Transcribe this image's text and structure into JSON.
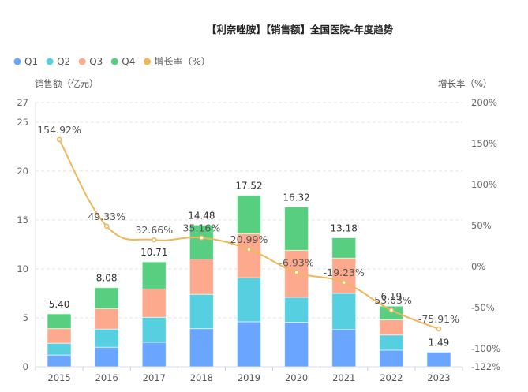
{
  "chart_data": {
    "type": "bar",
    "title": "【利奈唑胺】【销售额】全国医院-年度趋势",
    "categories": [
      "2015",
      "2016",
      "2017",
      "2018",
      "2019",
      "2020",
      "2021",
      "2022",
      "2023"
    ],
    "series": [
      {
        "name": "Q1",
        "color": "#6aa6ff",
        "values": [
          1.2,
          2.0,
          2.5,
          3.9,
          4.6,
          4.55,
          3.8,
          1.7,
          1.49
        ]
      },
      {
        "name": "Q2",
        "color": "#56cfe0",
        "values": [
          1.2,
          1.85,
          2.55,
          3.5,
          4.5,
          2.55,
          3.7,
          1.55,
          0
        ]
      },
      {
        "name": "Q3",
        "color": "#fca98e",
        "values": [
          1.5,
          2.1,
          2.9,
          3.6,
          4.5,
          4.8,
          3.6,
          1.55,
          0
        ]
      },
      {
        "name": "Q4",
        "color": "#58cf80",
        "values": [
          1.5,
          2.13,
          2.76,
          3.48,
          3.92,
          4.42,
          2.08,
          1.39,
          0
        ]
      }
    ],
    "totals": [
      "5.40",
      "8.08",
      "10.71",
      "14.48",
      "17.52",
      "16.32",
      "13.18",
      "6.19",
      "1.49"
    ],
    "growth_series": {
      "name": "增长率（%）",
      "color": "#f0b75a",
      "values": [
        154.92,
        49.33,
        32.66,
        35.16,
        20.99,
        -6.93,
        -19.23,
        -53.03,
        -75.91
      ],
      "labels": [
        "154.92%",
        "49.33%",
        "32.66%",
        "35.16%",
        "20.99%",
        "-6.93%",
        "-19.23%",
        "-53.03%",
        "-75.91%"
      ]
    },
    "legend": {
      "placement": "top-left",
      "items": [
        {
          "label": "Q1",
          "color": "#6aa6ff"
        },
        {
          "label": "Q2",
          "color": "#56cfe0"
        },
        {
          "label": "Q3",
          "color": "#fca98e"
        },
        {
          "label": "Q4",
          "color": "#58cf80"
        },
        {
          "label": "增长率（%）",
          "color": "#f0b75a"
        }
      ]
    },
    "ylabel": "销售额（亿元）",
    "y2label": "增长率（%）",
    "ylim": [
      0,
      27
    ],
    "y2lim": [
      -122,
      200
    ],
    "yticks": [
      0,
      5,
      10,
      15,
      20,
      25,
      27
    ],
    "y2ticks": [
      200,
      150,
      100,
      50,
      0,
      -50,
      -100,
      -122
    ],
    "y2tick_labels": [
      "200%",
      "150%",
      "100%",
      "50%",
      "0%",
      "-50%",
      "-100%",
      "-122%"
    ],
    "grid": true
  }
}
